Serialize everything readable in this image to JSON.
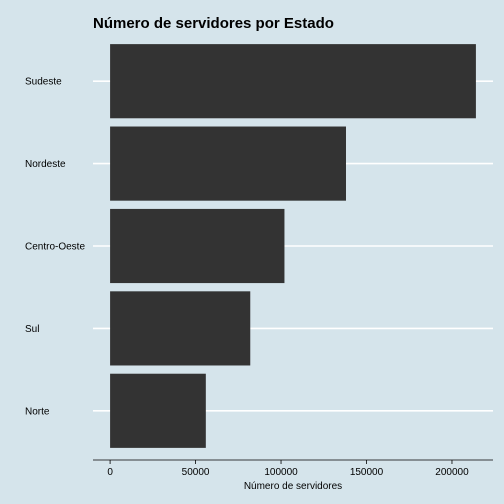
{
  "chart_data": {
    "type": "bar",
    "orientation": "horizontal",
    "title": "Número de servidores por Estado",
    "xlabel": "Número de servidores",
    "ylabel": "",
    "categories": [
      "Sudeste",
      "Nordeste",
      "Centro-Oeste",
      "Sul",
      "Norte"
    ],
    "values": [
      214000,
      138000,
      102000,
      82000,
      56000
    ],
    "xlim": [
      -10000,
      224000
    ],
    "xticks": [
      0,
      50000,
      100000,
      150000,
      200000
    ],
    "xtick_labels": [
      "0",
      "50000",
      "100000",
      "150000",
      "200000"
    ],
    "grid": true,
    "bar_color": "#333333",
    "background_color": "#d5e4eb",
    "grid_color": "#ffffff"
  }
}
